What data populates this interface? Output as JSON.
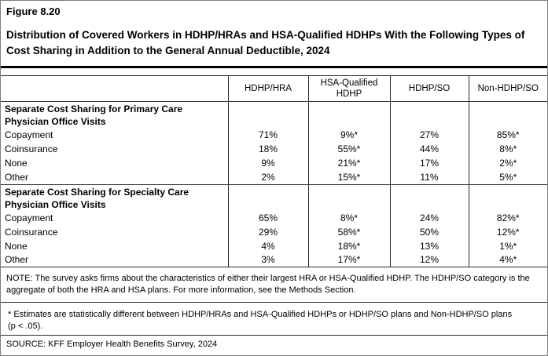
{
  "figure": {
    "label": "Figure 8.20",
    "title": "Distribution of Covered Workers in HDHP/HRAs and HSA-Qualified HDHPs With the Following Types of Cost Sharing in Addition to the General Annual Deductible, 2024"
  },
  "table": {
    "columns": [
      "",
      "HDHP/HRA",
      "HSA-Qualified HDHP",
      "HDHP/SO",
      "Non-HDHP/SO"
    ],
    "sections": [
      {
        "heading_line1": "Separate Cost Sharing for Primary Care",
        "heading_line2": "Physician Office Visits",
        "rows": [
          {
            "label": "Copayment",
            "values": [
              "71%",
              "9%*",
              "27%",
              "85%*"
            ]
          },
          {
            "label": "Coinsurance",
            "values": [
              "18%",
              "55%*",
              "44%",
              "8%*"
            ]
          },
          {
            "label": "None",
            "values": [
              "9%",
              "21%*",
              "17%",
              "2%*"
            ]
          },
          {
            "label": "Other",
            "values": [
              "2%",
              "15%*",
              "11%",
              "5%*"
            ]
          }
        ]
      },
      {
        "heading_line1": "Separate Cost Sharing for Specialty Care",
        "heading_line2": "Physician Office Visits",
        "rows": [
          {
            "label": "Copayment",
            "values": [
              "65%",
              "8%*",
              "24%",
              "82%*"
            ]
          },
          {
            "label": "Coinsurance",
            "values": [
              "29%",
              "58%*",
              "50%",
              "12%*"
            ]
          },
          {
            "label": "None",
            "values": [
              "4%",
              "18%*",
              "13%",
              "1%*"
            ]
          },
          {
            "label": "Other",
            "values": [
              "3%",
              "17%*",
              "12%",
              "4%*"
            ]
          }
        ]
      }
    ]
  },
  "notes": {
    "note": "NOTE: The survey asks firms about the characteristics of either their largest HRA or HSA-Qualified HDHP. The HDHP/SO category is the aggregate of both the HRA and HSA plans. For more information, see the Methods Section.",
    "asterisk": "* Estimates are statistically different between HDHP/HRAs and HSA-Qualified HDHPs or HDHP/SO plans and Non-HDHP/SO plans (p < .05).",
    "source": "SOURCE: KFF Employer Health Benefits Survey, 2024"
  },
  "colors": {
    "line": "#2b2b2b",
    "outer_border": "#7d7d7d",
    "text": "#000000",
    "background": "#ffffff"
  }
}
